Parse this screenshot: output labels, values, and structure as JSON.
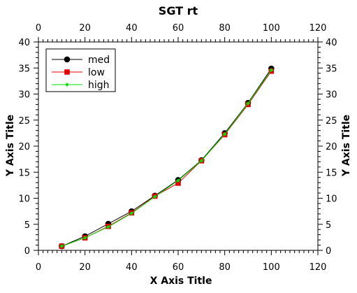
{
  "chart_data": {
    "type": "line",
    "title": "SGT rt",
    "xlabel": "X Axis Title",
    "ylabel": "Y Axis Title",
    "xlim": [
      0,
      120
    ],
    "ylim": [
      0,
      40
    ],
    "xticks": [
      0,
      20,
      40,
      60,
      80,
      100,
      120
    ],
    "yticks": [
      0,
      5,
      10,
      15,
      20,
      25,
      30,
      35,
      40
    ],
    "grid": false,
    "legend_position": "top-left",
    "x": [
      10,
      20,
      30,
      40,
      50,
      60,
      70,
      80,
      90,
      100
    ],
    "series": [
      {
        "name": "med",
        "marker": "circle",
        "color": "#000000",
        "values": [
          0.8,
          2.7,
          5.1,
          7.5,
          10.5,
          13.5,
          17.3,
          22.5,
          28.3,
          34.9
        ]
      },
      {
        "name": "low",
        "marker": "square",
        "color": "#e00000",
        "values": [
          0.8,
          2.4,
          4.6,
          7.2,
          10.4,
          12.9,
          17.2,
          22.2,
          28.0,
          34.4
        ]
      },
      {
        "name": "high",
        "marker": "diamond",
        "color": "#00e000",
        "values": [
          0.8,
          2.4,
          4.5,
          7.1,
          10.3,
          13.4,
          17.2,
          22.3,
          28.2,
          34.6
        ]
      }
    ]
  }
}
